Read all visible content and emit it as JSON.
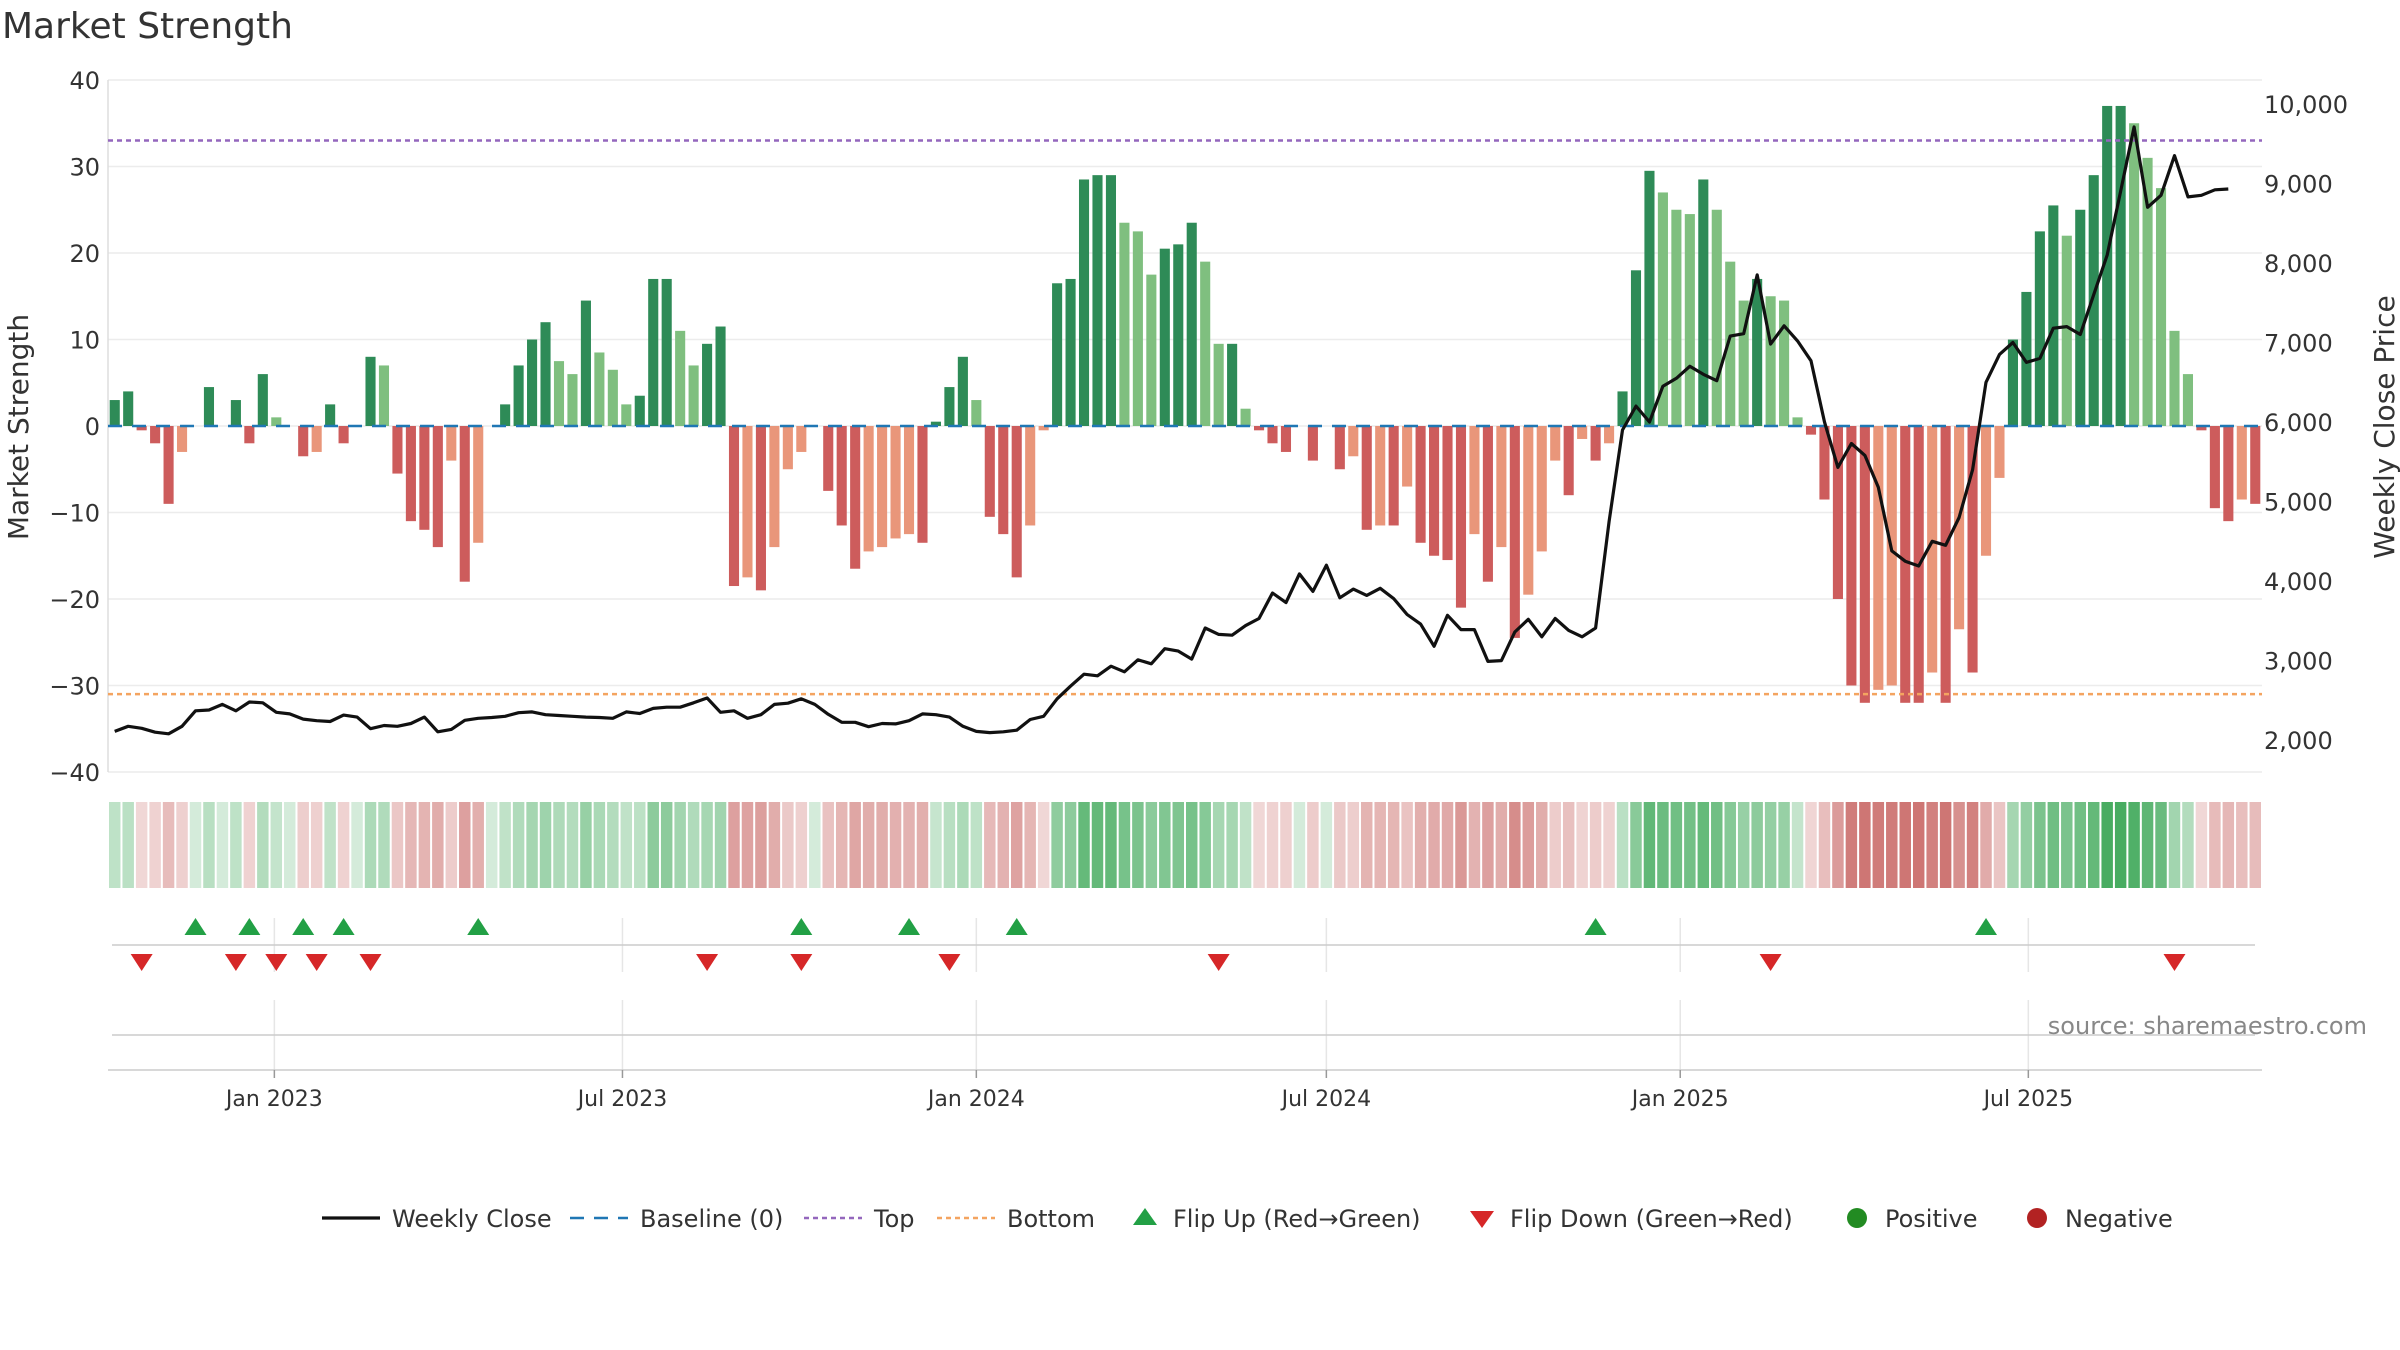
{
  "title": "Market Strength",
  "source_note": "source: sharemaestro.com",
  "colors": {
    "pos_dark": "#2e8b57",
    "pos_light": "#7fbf7f",
    "neg_dark": "#cd5c5c",
    "neg_light": "#e9967a",
    "close_line": "#111111",
    "baseline": "#1f77b4",
    "top": "#9467bd",
    "bottom": "#f4a460",
    "flip_up": "#22a045",
    "flip_down": "#d62728",
    "positive_dot": "#228b22",
    "negative_dot": "#b22222"
  },
  "chart_data": {
    "type": "bar",
    "title": "Market Strength",
    "x_axis": {
      "start_date": "2022-10-10",
      "tick_labels": [
        "Jan 2023",
        "Jul 2023",
        "Jan 2024",
        "Jul 2024",
        "Jan 2025",
        "Jul 2025"
      ],
      "tick_dates": [
        "2023-01-01",
        "2023-07-01",
        "2024-01-01",
        "2024-07-01",
        "2025-01-01",
        "2025-07-01"
      ]
    },
    "y_left": {
      "label": "Market Strength",
      "range": [
        -40,
        40
      ],
      "ticks": [
        40,
        30,
        20,
        10,
        0,
        -10,
        -20,
        -30,
        -40
      ],
      "tick_labels": [
        "40",
        "30",
        "20",
        "10",
        "0",
        "−10",
        "−20",
        "−30",
        "−40"
      ]
    },
    "y_right": {
      "label": "Weekly Close Price",
      "range": [
        1600,
        10300
      ],
      "ticks": [
        10000,
        9000,
        8000,
        7000,
        6000,
        5000,
        4000,
        3000,
        2000
      ],
      "tick_labels": [
        "10,000",
        "9,000",
        "8,000",
        "7,000",
        "6,000",
        "5,000",
        "4,000",
        "3,000",
        "2,000"
      ]
    },
    "reference_lines": {
      "baseline": 0,
      "top": 33,
      "bottom": -31
    },
    "grid": true,
    "legend_position": "bottom-center",
    "market_strength": [
      3,
      4,
      -0.5,
      -2,
      -9,
      -3,
      0,
      4.5,
      0,
      3,
      -2,
      6,
      1,
      0,
      -3.5,
      -3,
      2.5,
      -2,
      0,
      8,
      7,
      -5.5,
      -11,
      -12,
      -14,
      -4,
      -18,
      -13.5,
      0,
      2.5,
      7,
      10,
      12,
      7.5,
      6,
      14.5,
      8.5,
      6.5,
      2.5,
      3.5,
      17,
      17,
      11,
      7,
      9.5,
      11.5,
      -18.5,
      -17.5,
      -19,
      -14,
      -5,
      -3,
      0,
      -7.5,
      -11.5,
      -16.5,
      -14.5,
      -14,
      -13,
      -12.5,
      -13.5,
      0.5,
      4.5,
      8,
      3,
      -10.5,
      -12.5,
      -17.5,
      -11.5,
      -0.5,
      16.5,
      17,
      28.5,
      29,
      29,
      23.5,
      22.5,
      17.5,
      20.5,
      21,
      23.5,
      19,
      9.5,
      9.5,
      2,
      -0.5,
      -2,
      -3,
      0,
      -4,
      0,
      -5,
      -3.5,
      -12,
      -11.5,
      -11.5,
      -7,
      -13.5,
      -15,
      -15.5,
      -21,
      -12.5,
      -18,
      -14,
      -24.5,
      -19.5,
      -14.5,
      -4,
      -8,
      -1.5,
      -4,
      -2,
      4,
      18,
      29.5,
      27,
      25,
      24.5,
      28.5,
      25,
      19,
      14.5,
      17,
      15,
      14.5,
      1,
      -1,
      -8.5,
      -20,
      -30,
      -32,
      -30.5,
      -30,
      -32,
      -32,
      -28.5,
      -32,
      -23.5,
      -28.5,
      -15,
      -6,
      10,
      15.5,
      22.5,
      25.5,
      22,
      25,
      29,
      37,
      37,
      35,
      31,
      27.5,
      11,
      6,
      -0.5,
      -9.5,
      -11,
      -8.5,
      -9
    ],
    "weekly_close": [
      2110,
      2175,
      2150,
      2100,
      2080,
      2175,
      2370,
      2380,
      2450,
      2370,
      2480,
      2470,
      2350,
      2330,
      2265,
      2245,
      2235,
      2315,
      2290,
      2145,
      2185,
      2175,
      2210,
      2290,
      2105,
      2135,
      2250,
      2275,
      2285,
      2300,
      2345,
      2355,
      2320,
      2310,
      2300,
      2290,
      2285,
      2275,
      2355,
      2335,
      2400,
      2415,
      2415,
      2470,
      2530,
      2350,
      2370,
      2275,
      2320,
      2450,
      2465,
      2520,
      2450,
      2325,
      2225,
      2225,
      2170,
      2210,
      2205,
      2245,
      2330,
      2320,
      2290,
      2175,
      2110,
      2095,
      2105,
      2125,
      2260,
      2300,
      2520,
      2680,
      2830,
      2810,
      2930,
      2860,
      3010,
      2960,
      3150,
      3120,
      3020,
      3410,
      3330,
      3320,
      3440,
      3530,
      3850,
      3730,
      4090,
      3870,
      4200,
      3790,
      3900,
      3820,
      3910,
      3780,
      3580,
      3460,
      3180,
      3570,
      3390,
      3390,
      2990,
      3000,
      3360,
      3520,
      3300,
      3530,
      3380,
      3300,
      3410,
      4750,
      5900,
      6200,
      6000,
      6450,
      6550,
      6700,
      6600,
      6520,
      7080,
      7110,
      7850,
      6980,
      7210,
      7020,
      6770,
      6000,
      5430,
      5730,
      5580,
      5180,
      4380,
      4250,
      4190,
      4500,
      4450,
      4800,
      5400,
      6500,
      6850,
      7000,
      6750,
      6800,
      7180,
      7200,
      7100,
      7600,
      8100,
      8900,
      9710,
      8700,
      8850,
      9350,
      8830,
      8850,
      8920,
      8930
    ],
    "flip_up_weeks": [
      6,
      10,
      14,
      17,
      27,
      51,
      59,
      67,
      110,
      139
    ],
    "flip_down_weeks": [
      2,
      9,
      12,
      15,
      19,
      44,
      51,
      62,
      82,
      123,
      153
    ]
  },
  "legend": {
    "weekly_close": "Weekly Close",
    "baseline": "Baseline (0)",
    "top": "Top",
    "bottom": "Bottom",
    "flip_up": "Flip Up (Red→Green)",
    "flip_down": "Flip Down (Green→Red)",
    "positive": "Positive",
    "negative": "Negative"
  }
}
